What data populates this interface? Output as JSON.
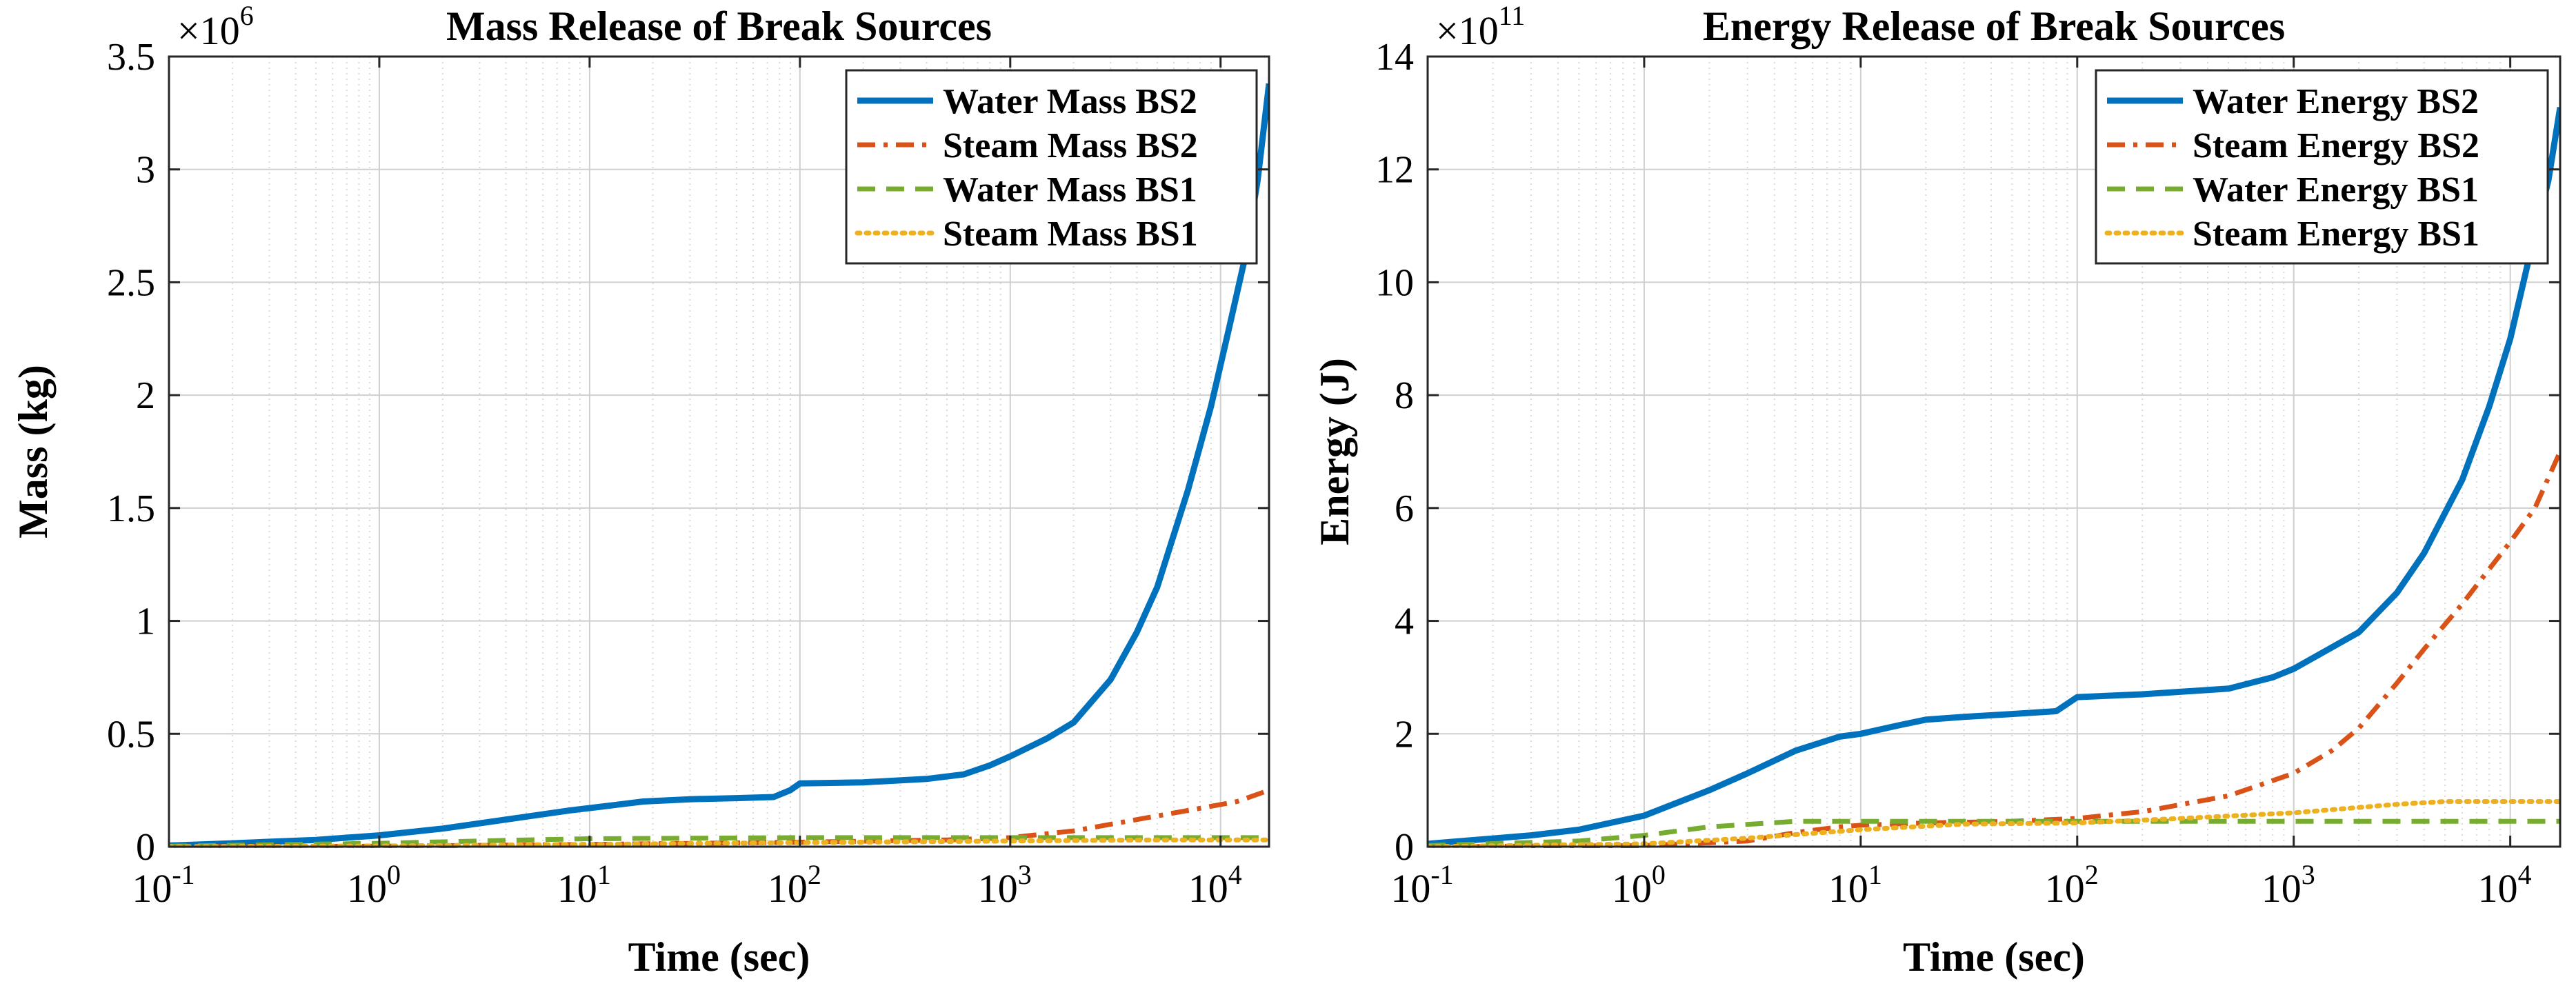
{
  "colors": {
    "water_bs2": "#0072BD",
    "steam_bs2": "#D95319",
    "water_bs1": "#77AC30",
    "steam_bs1": "#EDB120",
    "grid_major": "#cfcfcf",
    "grid_minor": "#d9d9d9",
    "axes": "#262626"
  },
  "chart_data": [
    {
      "type": "line",
      "title": "Mass Release of Break Sources",
      "xlabel": "Time (sec)",
      "ylabel": "Mass (kg)",
      "x_scale": "log",
      "xlim": [
        0.1,
        17000
      ],
      "ylim": [
        0,
        3.5
      ],
      "y_multiplier": "×10",
      "y_exponent": "6",
      "x_ticks": [
        {
          "value": 0.1,
          "base": "10",
          "exp": "-1"
        },
        {
          "value": 1,
          "base": "10",
          "exp": "0"
        },
        {
          "value": 10,
          "base": "10",
          "exp": "1"
        },
        {
          "value": 100,
          "base": "10",
          "exp": "2"
        },
        {
          "value": 1000,
          "base": "10",
          "exp": "3"
        },
        {
          "value": 10000,
          "base": "10",
          "exp": "4"
        }
      ],
      "y_ticks": [
        {
          "value": 0,
          "label": "0"
        },
        {
          "value": 0.5,
          "label": "0.5"
        },
        {
          "value": 1,
          "label": "1"
        },
        {
          "value": 1.5,
          "label": "1.5"
        },
        {
          "value": 2,
          "label": "2"
        },
        {
          "value": 2.5,
          "label": "2.5"
        },
        {
          "value": 3,
          "label": "3"
        },
        {
          "value": 3.5,
          "label": "3.5"
        }
      ],
      "grid": true,
      "legend": "top-right",
      "series": [
        {
          "name": "Water Mass BS2",
          "color_key": "water_bs2",
          "style": "solid",
          "x": [
            0.1,
            0.2,
            0.5,
            1,
            2,
            4,
            8,
            12,
            18,
            30,
            50,
            75,
            90,
            100,
            200,
            400,
            600,
            800,
            1000,
            1500,
            2000,
            3000,
            4000,
            5000,
            7000,
            9000,
            11000,
            13000,
            15000,
            17000
          ],
          "y": [
            0.005,
            0.015,
            0.03,
            0.05,
            0.08,
            0.12,
            0.16,
            0.18,
            0.2,
            0.21,
            0.215,
            0.22,
            0.25,
            0.28,
            0.285,
            0.3,
            0.32,
            0.36,
            0.4,
            0.48,
            0.55,
            0.74,
            0.95,
            1.15,
            1.58,
            1.95,
            2.3,
            2.6,
            2.95,
            3.38
          ]
        },
        {
          "name": "Steam Mass BS2",
          "color_key": "steam_bs2",
          "style": "dashdot",
          "x": [
            0.1,
            1,
            10,
            100,
            500,
            1000,
            2000,
            4000,
            8000,
            12000,
            17000
          ],
          "y": [
            0,
            0.002,
            0.01,
            0.02,
            0.03,
            0.04,
            0.07,
            0.12,
            0.17,
            0.2,
            0.25
          ]
        },
        {
          "name": "Water Mass BS1",
          "color_key": "water_bs1",
          "style": "dashed",
          "x": [
            0.1,
            1,
            5,
            10,
            100,
            1000,
            17000
          ],
          "y": [
            0.002,
            0.015,
            0.03,
            0.035,
            0.04,
            0.04,
            0.04
          ]
        },
        {
          "name": "Steam Mass BS1",
          "color_key": "steam_bs1",
          "style": "dotted",
          "x": [
            0.1,
            1,
            10,
            100,
            1000,
            5000,
            17000
          ],
          "y": [
            0,
            0.003,
            0.01,
            0.018,
            0.025,
            0.03,
            0.03
          ]
        }
      ]
    },
    {
      "type": "line",
      "title": "Energy Release of Break Sources",
      "xlabel": "Time (sec)",
      "ylabel": "Energy (J)",
      "x_scale": "log",
      "xlim": [
        0.1,
        17000
      ],
      "ylim": [
        0,
        14
      ],
      "y_multiplier": "×10",
      "y_exponent": "11",
      "x_ticks": [
        {
          "value": 0.1,
          "base": "10",
          "exp": "-1"
        },
        {
          "value": 1,
          "base": "10",
          "exp": "0"
        },
        {
          "value": 10,
          "base": "10",
          "exp": "1"
        },
        {
          "value": 100,
          "base": "10",
          "exp": "2"
        },
        {
          "value": 1000,
          "base": "10",
          "exp": "3"
        },
        {
          "value": 10000,
          "base": "10",
          "exp": "4"
        }
      ],
      "y_ticks": [
        {
          "value": 0,
          "label": "0"
        },
        {
          "value": 2,
          "label": "2"
        },
        {
          "value": 4,
          "label": "4"
        },
        {
          "value": 6,
          "label": "6"
        },
        {
          "value": 8,
          "label": "8"
        },
        {
          "value": 10,
          "label": "10"
        },
        {
          "value": 12,
          "label": "12"
        },
        {
          "value": 14,
          "label": "14"
        }
      ],
      "grid": true,
      "legend": "top-right",
      "series": [
        {
          "name": "Water Energy BS2",
          "color_key": "water_bs2",
          "style": "solid",
          "x": [
            0.1,
            0.3,
            0.5,
            1,
            2,
            3,
            5,
            8,
            10,
            15,
            20,
            30,
            50,
            80,
            100,
            200,
            500,
            800,
            1000,
            2000,
            3000,
            4000,
            6000,
            8000,
            10000,
            12000,
            15000,
            17000
          ],
          "y": [
            0.05,
            0.2,
            0.3,
            0.55,
            1.0,
            1.3,
            1.7,
            1.95,
            2.0,
            2.15,
            2.25,
            2.3,
            2.35,
            2.4,
            2.65,
            2.7,
            2.8,
            3.0,
            3.15,
            3.8,
            4.5,
            5.2,
            6.5,
            7.8,
            9.0,
            10.3,
            11.8,
            13.1
          ]
        },
        {
          "name": "Steam Energy BS2",
          "color_key": "steam_bs2",
          "style": "dashdot",
          "x": [
            0.1,
            1,
            3,
            5,
            8,
            10,
            20,
            50,
            100,
            200,
            500,
            1000,
            1500,
            2000,
            3000,
            4000,
            6000,
            10000,
            13000,
            17000
          ],
          "y": [
            0,
            0.02,
            0.1,
            0.25,
            0.35,
            0.38,
            0.42,
            0.45,
            0.5,
            0.62,
            0.9,
            1.3,
            1.7,
            2.1,
            2.9,
            3.5,
            4.3,
            5.4,
            6.0,
            7.0
          ]
        },
        {
          "name": "Water Energy BS1",
          "color_key": "water_bs1",
          "style": "dashed",
          "x": [
            0.1,
            0.5,
            1,
            2,
            5,
            10,
            100,
            1000,
            17000
          ],
          "y": [
            0.02,
            0.1,
            0.2,
            0.35,
            0.45,
            0.45,
            0.45,
            0.45,
            0.45
          ]
        },
        {
          "name": "Steam Energy BS1",
          "color_key": "steam_bs1",
          "style": "dotted",
          "x": [
            0.1,
            1,
            3,
            10,
            30,
            100,
            300,
            1000,
            3000,
            5000,
            10000,
            17000
          ],
          "y": [
            0,
            0.05,
            0.15,
            0.3,
            0.4,
            0.42,
            0.5,
            0.6,
            0.75,
            0.8,
            0.8,
            0.8
          ]
        }
      ]
    }
  ]
}
